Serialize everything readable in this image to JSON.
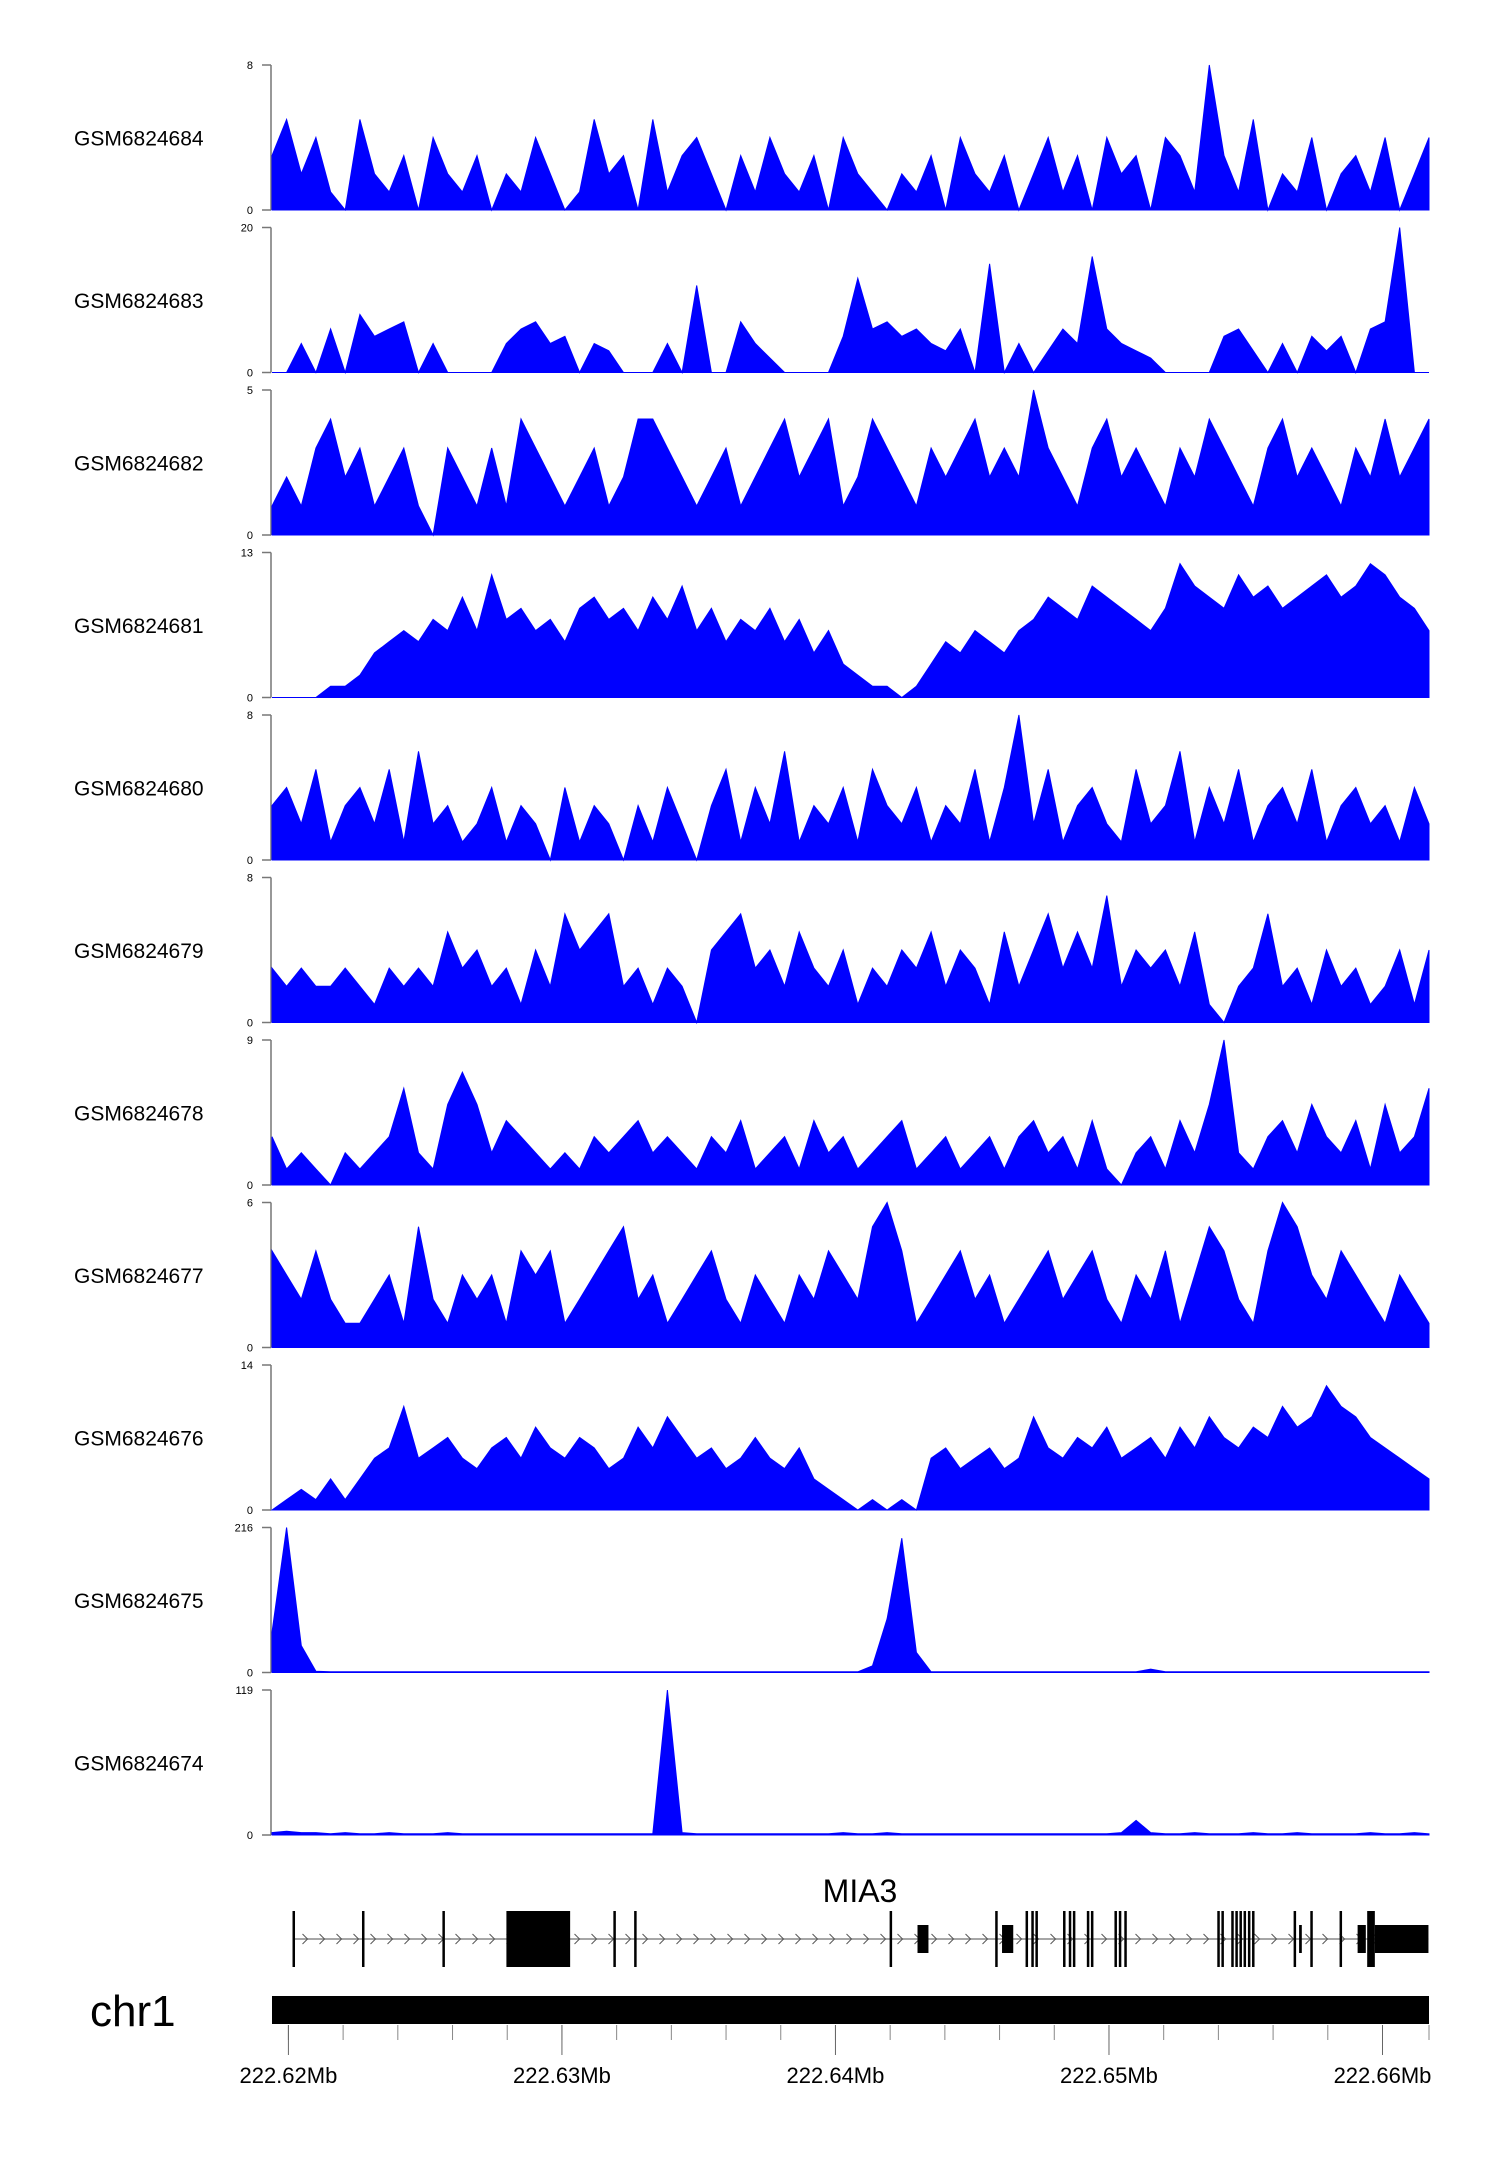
{
  "chart_data": {
    "type": "area",
    "title": "",
    "xlabel": "",
    "chromosome": "chr1",
    "xlim_mb": [
      222.6194,
      222.6617
    ],
    "x_ticks": {
      "major": [
        "222.62Mb",
        "222.63Mb",
        "222.64Mb",
        "222.65Mb",
        "222.66Mb"
      ],
      "major_values": [
        222.62,
        222.63,
        222.64,
        222.65,
        222.66
      ],
      "minor_step_mb": 0.002
    },
    "series_color": "#0000ff",
    "bins_per_track": 80,
    "tracks": [
      {
        "name": "GSM6824684",
        "ymax": 8,
        "ymin": 0,
        "values": [
          3,
          5,
          2,
          4,
          1,
          0,
          5,
          2,
          1,
          3,
          0,
          4,
          2,
          1,
          3,
          0,
          2,
          1,
          4,
          2,
          0,
          1,
          5,
          2,
          3,
          0,
          5,
          1,
          3,
          4,
          2,
          0,
          3,
          1,
          4,
          2,
          1,
          3,
          0,
          4,
          2,
          1,
          0,
          2,
          1,
          3,
          0,
          4,
          2,
          1,
          3,
          0,
          2,
          4,
          1,
          3,
          0,
          4,
          2,
          3,
          0,
          4,
          3,
          1,
          8,
          3,
          1,
          5,
          0,
          2,
          1,
          4,
          0,
          2,
          3,
          1,
          4,
          0,
          2,
          4
        ]
      },
      {
        "name": "GSM6824683",
        "ymax": 20,
        "ymin": 0,
        "values": [
          0,
          0,
          4,
          0,
          6,
          0,
          8,
          5,
          6,
          7,
          0,
          4,
          0,
          0,
          0,
          0,
          4,
          6,
          7,
          4,
          5,
          0,
          4,
          3,
          0,
          0,
          0,
          4,
          0,
          12,
          0,
          0,
          7,
          4,
          2,
          0,
          0,
          0,
          0,
          5,
          13,
          6,
          7,
          5,
          6,
          4,
          3,
          6,
          0,
          15,
          0,
          4,
          0,
          3,
          6,
          4,
          16,
          6,
          4,
          3,
          2,
          0,
          0,
          0,
          0,
          5,
          6,
          3,
          0,
          4,
          0,
          5,
          3,
          5,
          0,
          6,
          7,
          20,
          0,
          0
        ]
      },
      {
        "name": "GSM6824682",
        "ymax": 5,
        "ymin": 0,
        "values": [
          1,
          2,
          1,
          3,
          4,
          2,
          3,
          1,
          2,
          3,
          1,
          0,
          3,
          2,
          1,
          3,
          1,
          4,
          3,
          2,
          1,
          2,
          3,
          1,
          2,
          4,
          4,
          3,
          2,
          1,
          2,
          3,
          1,
          2,
          3,
          4,
          2,
          3,
          4,
          1,
          2,
          4,
          3,
          2,
          1,
          3,
          2,
          3,
          4,
          2,
          3,
          2,
          5,
          3,
          2,
          1,
          3,
          4,
          2,
          3,
          2,
          1,
          3,
          2,
          4,
          3,
          2,
          1,
          3,
          4,
          2,
          3,
          2,
          1,
          3,
          2,
          4,
          2,
          3,
          4
        ]
      },
      {
        "name": "GSM6824681",
        "ymax": 13,
        "ymin": 0,
        "values": [
          0,
          0,
          0,
          0,
          1,
          1,
          2,
          4,
          5,
          6,
          5,
          7,
          6,
          9,
          6,
          11,
          7,
          8,
          6,
          7,
          5,
          8,
          9,
          7,
          8,
          6,
          9,
          7,
          10,
          6,
          8,
          5,
          7,
          6,
          8,
          5,
          7,
          4,
          6,
          3,
          2,
          1,
          1,
          0,
          1,
          3,
          5,
          4,
          6,
          5,
          4,
          6,
          7,
          9,
          8,
          7,
          10,
          9,
          8,
          7,
          6,
          8,
          12,
          10,
          9,
          8,
          11,
          9,
          10,
          8,
          9,
          10,
          11,
          9,
          10,
          12,
          11,
          9,
          8,
          6
        ]
      },
      {
        "name": "GSM6824680",
        "ymax": 8,
        "ymin": 0,
        "values": [
          3,
          4,
          2,
          5,
          1,
          3,
          4,
          2,
          5,
          1,
          6,
          2,
          3,
          1,
          2,
          4,
          1,
          3,
          2,
          0,
          4,
          1,
          3,
          2,
          0,
          3,
          1,
          4,
          2,
          0,
          3,
          5,
          1,
          4,
          2,
          6,
          1,
          3,
          2,
          4,
          1,
          5,
          3,
          2,
          4,
          1,
          3,
          2,
          5,
          1,
          4,
          8,
          2,
          5,
          1,
          3,
          4,
          2,
          1,
          5,
          2,
          3,
          6,
          1,
          4,
          2,
          5,
          1,
          3,
          4,
          2,
          5,
          1,
          3,
          4,
          2,
          3,
          1,
          4,
          2
        ]
      },
      {
        "name": "GSM6824679",
        "ymax": 8,
        "ymin": 0,
        "values": [
          3,
          2,
          3,
          2,
          2,
          3,
          2,
          1,
          3,
          2,
          3,
          2,
          5,
          3,
          4,
          2,
          3,
          1,
          4,
          2,
          6,
          4,
          5,
          6,
          2,
          3,
          1,
          3,
          2,
          0,
          4,
          5,
          6,
          3,
          4,
          2,
          5,
          3,
          2,
          4,
          1,
          3,
          2,
          4,
          3,
          5,
          2,
          4,
          3,
          1,
          5,
          2,
          4,
          6,
          3,
          5,
          3,
          7,
          2,
          4,
          3,
          4,
          2,
          5,
          1,
          0,
          2,
          3,
          6,
          2,
          3,
          1,
          4,
          2,
          3,
          1,
          2,
          4,
          1,
          4
        ]
      },
      {
        "name": "GSM6824678",
        "ymax": 9,
        "ymin": 0,
        "values": [
          3,
          1,
          2,
          1,
          0,
          2,
          1,
          2,
          3,
          6,
          2,
          1,
          5,
          7,
          5,
          2,
          4,
          3,
          2,
          1,
          2,
          1,
          3,
          2,
          3,
          4,
          2,
          3,
          2,
          1,
          3,
          2,
          4,
          1,
          2,
          3,
          1,
          4,
          2,
          3,
          1,
          2,
          3,
          4,
          1,
          2,
          3,
          1,
          2,
          3,
          1,
          3,
          4,
          2,
          3,
          1,
          4,
          1,
          0,
          2,
          3,
          1,
          4,
          2,
          5,
          9,
          2,
          1,
          3,
          4,
          2,
          5,
          3,
          2,
          4,
          1,
          5,
          2,
          3,
          6
        ]
      },
      {
        "name": "GSM6824677",
        "ymax": 6,
        "ymin": 0,
        "values": [
          4,
          3,
          2,
          4,
          2,
          1,
          1,
          2,
          3,
          1,
          5,
          2,
          1,
          3,
          2,
          3,
          1,
          4,
          3,
          4,
          1,
          2,
          3,
          4,
          5,
          2,
          3,
          1,
          2,
          3,
          4,
          2,
          1,
          3,
          2,
          1,
          3,
          2,
          4,
          3,
          2,
          5,
          6,
          4,
          1,
          2,
          3,
          4,
          2,
          3,
          1,
          2,
          3,
          4,
          2,
          3,
          4,
          2,
          1,
          3,
          2,
          4,
          1,
          3,
          5,
          4,
          2,
          1,
          4,
          6,
          5,
          3,
          2,
          4,
          3,
          2,
          1,
          3,
          2,
          1
        ]
      },
      {
        "name": "GSM6824676",
        "ymax": 14,
        "ymin": 0,
        "values": [
          0,
          1,
          2,
          1,
          3,
          1,
          3,
          5,
          6,
          10,
          5,
          6,
          7,
          5,
          4,
          6,
          7,
          5,
          8,
          6,
          5,
          7,
          6,
          4,
          5,
          8,
          6,
          9,
          7,
          5,
          6,
          4,
          5,
          7,
          5,
          4,
          6,
          3,
          2,
          1,
          0,
          1,
          0,
          1,
          0,
          5,
          6,
          4,
          5,
          6,
          4,
          5,
          9,
          6,
          5,
          7,
          6,
          8,
          5,
          6,
          7,
          5,
          8,
          6,
          9,
          7,
          6,
          8,
          7,
          10,
          8,
          9,
          12,
          10,
          9,
          7,
          6,
          5,
          4,
          3
        ]
      },
      {
        "name": "GSM6824675",
        "ymax": 216,
        "ymin": 0,
        "values": [
          60,
          216,
          40,
          2,
          1,
          1,
          1,
          1,
          1,
          1,
          1,
          1,
          1,
          1,
          1,
          1,
          1,
          1,
          1,
          1,
          1,
          1,
          1,
          1,
          1,
          1,
          1,
          1,
          1,
          1,
          1,
          1,
          1,
          1,
          1,
          1,
          1,
          1,
          1,
          1,
          1,
          10,
          80,
          200,
          30,
          1,
          1,
          1,
          1,
          1,
          1,
          1,
          1,
          1,
          1,
          1,
          1,
          1,
          1,
          1,
          5,
          1,
          1,
          1,
          1,
          1,
          1,
          1,
          1,
          1,
          1,
          1,
          1,
          1,
          1,
          1,
          1,
          1,
          1,
          1
        ]
      },
      {
        "name": "GSM6824674",
        "ymax": 119,
        "ymin": 0,
        "values": [
          2,
          3,
          2,
          2,
          1,
          2,
          1,
          1,
          2,
          1,
          1,
          1,
          2,
          1,
          1,
          1,
          1,
          1,
          1,
          1,
          1,
          1,
          1,
          1,
          1,
          1,
          1,
          119,
          2,
          1,
          1,
          1,
          1,
          1,
          1,
          1,
          1,
          1,
          1,
          2,
          1,
          1,
          2,
          1,
          1,
          1,
          1,
          1,
          1,
          1,
          1,
          1,
          1,
          1,
          1,
          1,
          1,
          1,
          2,
          12,
          2,
          1,
          1,
          2,
          1,
          1,
          1,
          2,
          1,
          1,
          2,
          1,
          1,
          1,
          1,
          2,
          1,
          1,
          2,
          1
        ]
      }
    ],
    "gene": {
      "name": "MIA3",
      "strand": "+",
      "start_mb": 222.62015,
      "end_mb": 222.66168,
      "exons": [
        {
          "s": 222.62015,
          "e": 222.62018,
          "kind": "coding"
        },
        {
          "s": 222.62269,
          "e": 222.62272,
          "kind": "coding"
        },
        {
          "s": 222.62563,
          "e": 222.62566,
          "kind": "coding"
        },
        {
          "s": 222.62797,
          "e": 222.6303,
          "kind": "coding"
        },
        {
          "s": 222.63188,
          "e": 222.63191,
          "kind": "coding"
        },
        {
          "s": 222.63264,
          "e": 222.63267,
          "kind": "coding"
        },
        {
          "s": 222.64198,
          "e": 222.64201,
          "kind": "coding"
        },
        {
          "s": 222.643,
          "e": 222.6434,
          "kind": "utr"
        },
        {
          "s": 222.64584,
          "e": 222.64586,
          "kind": "coding"
        },
        {
          "s": 222.64609,
          "e": 222.6465,
          "kind": "utr"
        },
        {
          "s": 222.64695,
          "e": 222.64698,
          "kind": "coding"
        },
        {
          "s": 222.64716,
          "e": 222.64719,
          "kind": "coding"
        },
        {
          "s": 222.64731,
          "e": 222.64734,
          "kind": "coding"
        },
        {
          "s": 222.64832,
          "e": 222.64835,
          "kind": "coding"
        },
        {
          "s": 222.64853,
          "e": 222.64856,
          "kind": "coding"
        },
        {
          "s": 222.64868,
          "e": 222.64871,
          "kind": "coding"
        },
        {
          "s": 222.64919,
          "e": 222.64922,
          "kind": "coding"
        },
        {
          "s": 222.64934,
          "e": 222.64937,
          "kind": "coding"
        },
        {
          "s": 222.6502,
          "e": 222.65023,
          "kind": "coding"
        },
        {
          "s": 222.65036,
          "e": 222.65039,
          "kind": "coding"
        },
        {
          "s": 222.65056,
          "e": 222.65059,
          "kind": "coding"
        },
        {
          "s": 222.65396,
          "e": 222.65399,
          "kind": "coding"
        },
        {
          "s": 222.65411,
          "e": 222.65414,
          "kind": "coding"
        },
        {
          "s": 222.65447,
          "e": 222.6545,
          "kind": "coding"
        },
        {
          "s": 222.65462,
          "e": 222.65465,
          "kind": "coding"
        },
        {
          "s": 222.65477,
          "e": 222.6548,
          "kind": "coding"
        },
        {
          "s": 222.65492,
          "e": 222.65495,
          "kind": "coding"
        },
        {
          "s": 222.65508,
          "e": 222.65511,
          "kind": "coding"
        },
        {
          "s": 222.65523,
          "e": 222.65526,
          "kind": "coding"
        },
        {
          "s": 222.65675,
          "e": 222.65678,
          "kind": "coding"
        },
        {
          "s": 222.65695,
          "e": 222.65705,
          "kind": "utr"
        },
        {
          "s": 222.65736,
          "e": 222.65739,
          "kind": "coding"
        },
        {
          "s": 222.65843,
          "e": 222.65846,
          "kind": "coding"
        },
        {
          "s": 222.65909,
          "e": 222.65939,
          "kind": "utr"
        },
        {
          "s": 222.65944,
          "e": 222.65972,
          "kind": "coding"
        },
        {
          "s": 222.65972,
          "e": 222.66168,
          "kind": "utr"
        }
      ]
    }
  }
}
